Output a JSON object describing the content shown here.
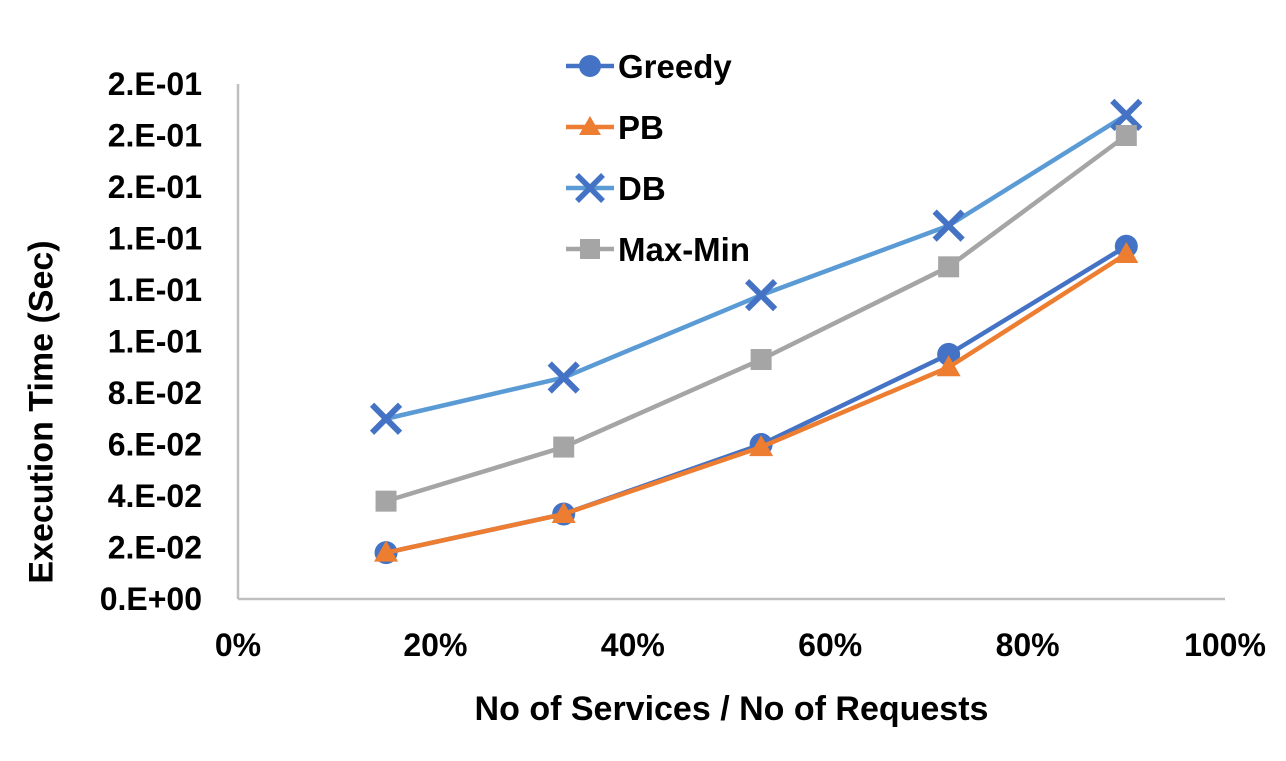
{
  "chart_data": {
    "type": "line",
    "title": "",
    "xlabel": "No of Services / No of Requests",
    "ylabel": "Execution Time (Sec)",
    "x": [
      15,
      33,
      53,
      72,
      90
    ],
    "x_unit": "%",
    "series": [
      {
        "name": "Greedy",
        "color": "#4472C4",
        "marker": "circle",
        "marker_color": "#4472C4",
        "values": [
          0.018,
          0.033,
          0.06,
          0.095,
          0.137
        ]
      },
      {
        "name": "PB",
        "color": "#ED7D31",
        "marker": "triangle",
        "marker_color": "#ED7D31",
        "values": [
          0.018,
          0.033,
          0.059,
          0.09,
          0.134
        ]
      },
      {
        "name": "DB",
        "color": "#5B9BD5",
        "marker": "x",
        "marker_color": "#4472C4",
        "values": [
          0.07,
          0.086,
          0.118,
          0.145,
          0.188
        ]
      },
      {
        "name": "Max-Min",
        "color": "#A5A5A5",
        "marker": "square",
        "marker_color": "#A5A5A5",
        "values": [
          0.038,
          0.059,
          0.093,
          0.129,
          0.18
        ]
      }
    ],
    "draw_order": [
      "DB",
      "Max-Min",
      "Greedy",
      "PB"
    ],
    "xlim": [
      0,
      100
    ],
    "ylim": [
      0,
      0.2
    ],
    "xticks": [
      {
        "value": 0,
        "label": "0%"
      },
      {
        "value": 20,
        "label": "20%"
      },
      {
        "value": 40,
        "label": "40%"
      },
      {
        "value": 60,
        "label": "60%"
      },
      {
        "value": 80,
        "label": "80%"
      },
      {
        "value": 100,
        "label": "100%"
      }
    ],
    "yticks": [
      {
        "value": 0.0,
        "label": "0.E+00"
      },
      {
        "value": 0.02,
        "label": "2.E-02"
      },
      {
        "value": 0.04,
        "label": "4.E-02"
      },
      {
        "value": 0.06,
        "label": "6.E-02"
      },
      {
        "value": 0.08,
        "label": "8.E-02"
      },
      {
        "value": 0.1,
        "label": "1.E-01"
      },
      {
        "value": 0.12,
        "label": "1.E-01"
      },
      {
        "value": 0.14,
        "label": "1.E-01"
      },
      {
        "value": 0.16,
        "label": "2.E-01"
      },
      {
        "value": 0.18,
        "label": "2.E-01"
      },
      {
        "value": 0.2,
        "label": "2.E-01"
      }
    ],
    "grid": false,
    "legend_position": "top-center-vertical",
    "axis_line_color": "#BFBFBF",
    "text_color": "#000000",
    "background_color": "#FFFFFF"
  }
}
